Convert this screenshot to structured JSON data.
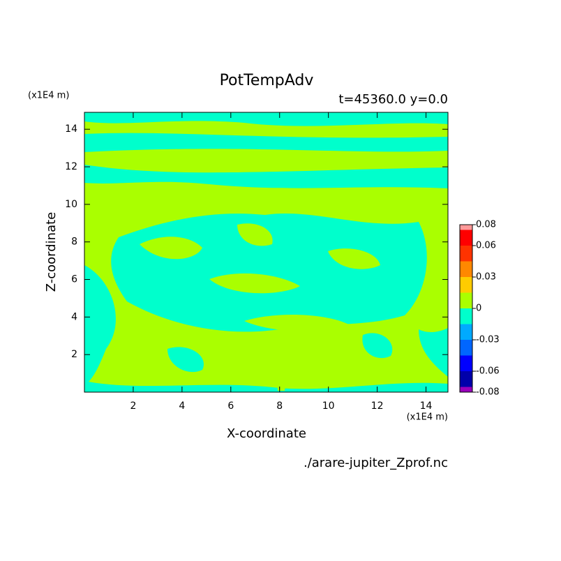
{
  "chart_data": {
    "type": "contour",
    "title": "PotTempAdv",
    "subtitle": "t=45360.0 y=0.0",
    "x_label": "X-coordinate",
    "y_label": "Z-coordinate",
    "x_unit": "(x1E4 m)",
    "y_unit": "(x1E4 m)",
    "source": "./arare-jupiter_Zprof.nc",
    "xlim": [
      0,
      14.9
    ],
    "ylim": [
      0,
      14.9
    ],
    "xticks": [
      2,
      4,
      6,
      8,
      10,
      12,
      14
    ],
    "yticks": [
      2,
      4,
      6,
      8,
      10,
      12,
      14
    ],
    "levels": [
      -0.08,
      -0.075,
      -0.06,
      -0.045,
      -0.03,
      -0.015,
      0,
      0.015,
      0.03,
      0.045,
      0.06,
      0.075,
      0.08
    ],
    "colors": [
      "#9900bb",
      "#0000aa",
      "#0000ff",
      "#0066ff",
      "#00aaff",
      "#00ffcc",
      "#aaff00",
      "#ffcc00",
      "#ff8800",
      "#ff3300",
      "#ff0000",
      "#ff9999"
    ],
    "colorbar_ticks": [
      0.08,
      0.06,
      0.03,
      0,
      -0.03,
      -0.06,
      -0.08
    ]
  }
}
